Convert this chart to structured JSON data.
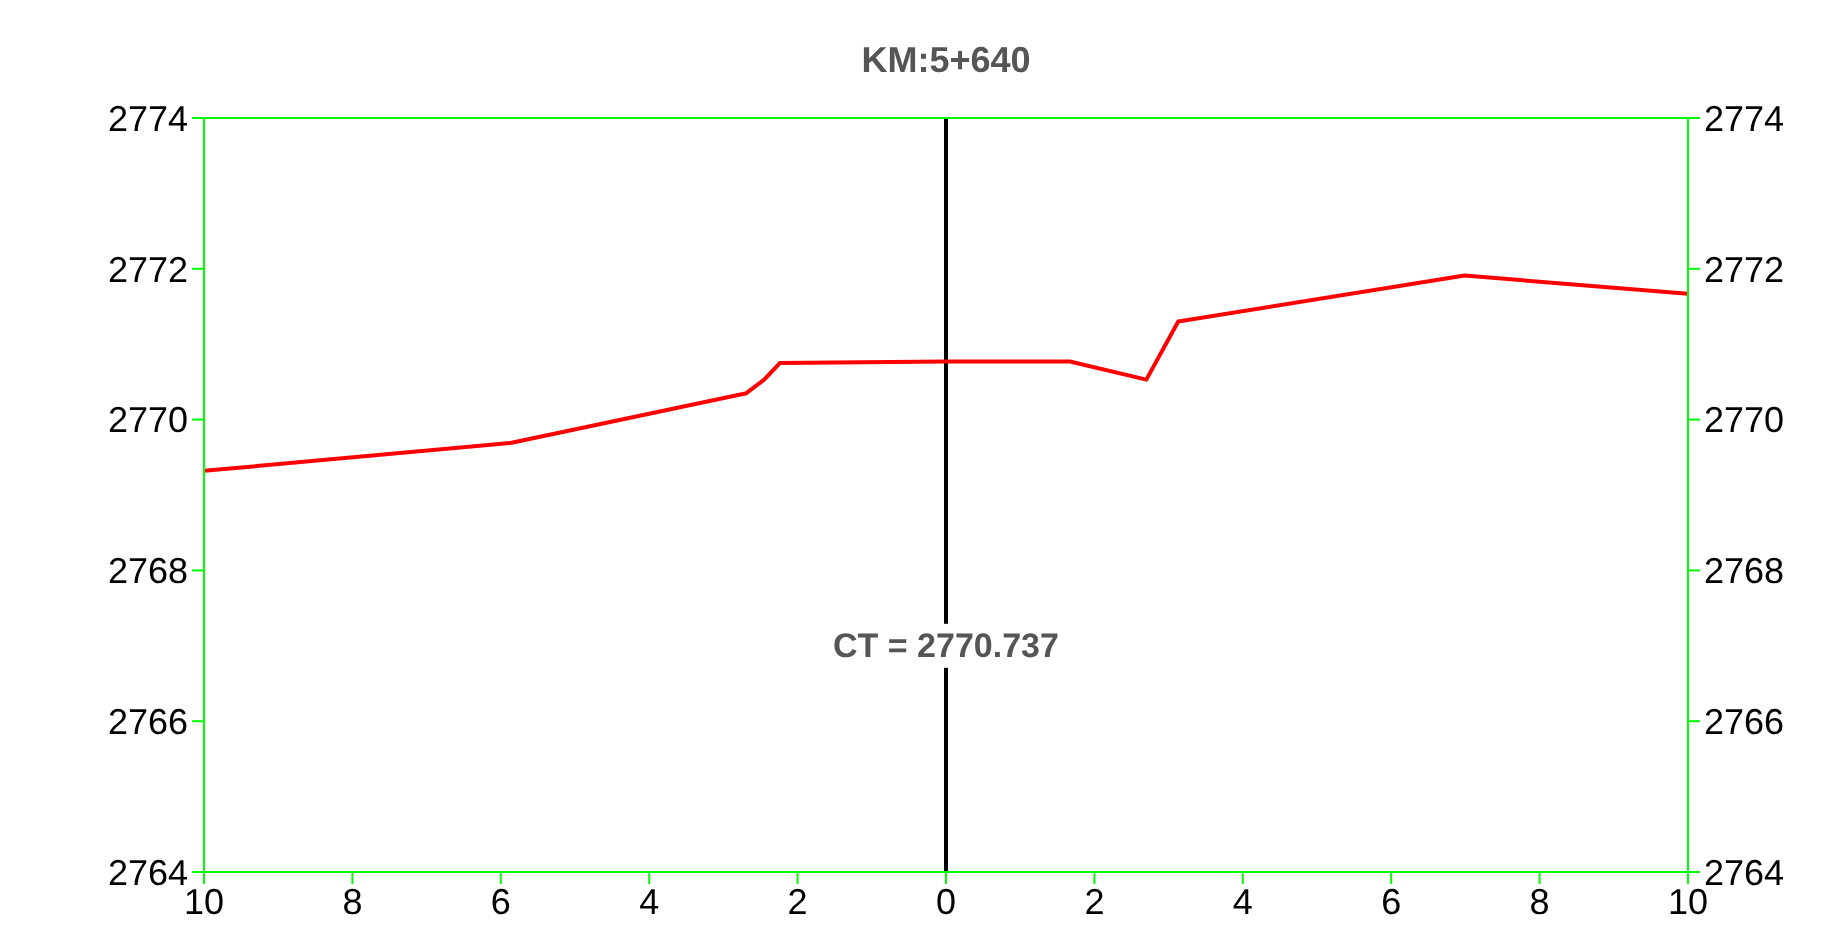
{
  "chart_data": {
    "type": "line",
    "title": "KM:5+640",
    "x": [
      -10,
      -5.87,
      -2.69,
      -2.45,
      -2.24,
      0,
      1.67,
      2.7,
      3.13,
      6.99,
      10
    ],
    "series": [
      {
        "color": "#ff0000",
        "values": [
          2769.32,
          2769.69,
          2770.35,
          2770.53,
          2770.75,
          2770.77,
          2770.77,
          2770.53,
          2771.3,
          2771.91,
          2771.67
        ]
      }
    ],
    "xlim": [
      -10,
      10
    ],
    "xticks": [
      {
        "value": -10,
        "label": "10"
      },
      {
        "value": -8,
        "label": "8"
      },
      {
        "value": -6,
        "label": "6"
      },
      {
        "value": -4,
        "label": "4"
      },
      {
        "value": -2,
        "label": "2"
      },
      0,
      2,
      4,
      6,
      8,
      10
    ],
    "ylim": [
      2764,
      2774
    ],
    "yticks": [
      2764,
      2766,
      2768,
      2770,
      2772,
      2774
    ],
    "y2lim": [
      2764,
      2774
    ],
    "y2ticks": [
      2764,
      2766,
      2768,
      2770,
      2772,
      2774
    ],
    "ref_lines": [
      {
        "axis": "x",
        "value": 0,
        "color": "#000000"
      }
    ],
    "annotations": [
      {
        "text": "CT = 2770.737",
        "x": 0,
        "y": 2767
      }
    ],
    "grid": false
  }
}
